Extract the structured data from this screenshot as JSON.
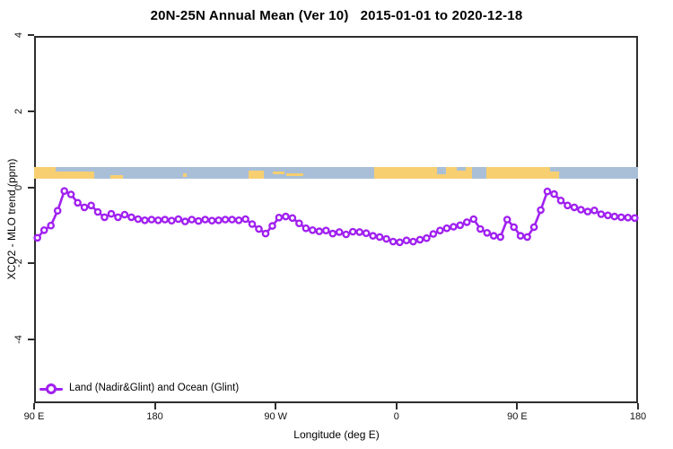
{
  "title": "20N-25N Annual Mean (Ver 10)   2015-01-01 to 2020-12-18",
  "axes": {
    "x": {
      "label": "Longitude (deg E)",
      "ticks": [
        "90 E",
        "180",
        "90 W",
        "0",
        "90 E",
        "180"
      ]
    },
    "y": {
      "label": "XCO2 - MLO trend (ppm)",
      "ticks": [
        "4",
        "2",
        "0",
        "-2",
        "-4"
      ]
    }
  },
  "legend": {
    "series_label": "Land (Nadir&Glint) and Ocean (Glint)"
  },
  "colors": {
    "series": "#A020F0",
    "marker_fill": "#ffffff",
    "land": "#F7CF71",
    "ocean": "#A9BFD8",
    "axis": "#2e2e2e"
  },
  "chart_data": {
    "type": "line",
    "title": "20N-25N Annual Mean (Ver 10)   2015-01-01 to 2020-12-18",
    "xlabel": "Longitude (deg E)",
    "ylabel": "XCO2 - MLO trend (ppm)",
    "xlim": [
      90,
      540
    ],
    "ylim": [
      -5.7,
      4.0
    ],
    "grid": false,
    "legend_position": "bottom-left",
    "x_tick_values": [
      90,
      180,
      270,
      360,
      450,
      540
    ],
    "x_tick_labels": [
      "90 E",
      "180",
      "90 W",
      "0",
      "90 E",
      "180"
    ],
    "y_tick_values": [
      4,
      2,
      0,
      -2,
      -4
    ],
    "series": [
      {
        "name": "Land (Nadir&Glint) and Ocean (Glint)",
        "color": "#A020F0",
        "marker": "open-circle",
        "x": [
          92.5,
          97.5,
          102.5,
          107.5,
          112.5,
          117.5,
          122.5,
          127.5,
          132.5,
          137.5,
          142.5,
          147.5,
          152.5,
          157.5,
          162.5,
          167.5,
          172.5,
          177.5,
          182.5,
          187.5,
          192.5,
          197.5,
          202.5,
          207.5,
          212.5,
          217.5,
          222.5,
          227.5,
          232.5,
          237.5,
          242.5,
          247.5,
          252.5,
          257.5,
          262.5,
          267.5,
          272.5,
          277.5,
          282.5,
          287.5,
          292.5,
          297.5,
          302.5,
          307.5,
          312.5,
          317.5,
          322.5,
          327.5,
          332.5,
          337.5,
          342.5,
          347.5,
          352.5,
          357.5,
          362.5,
          367.5,
          372.5,
          377.5,
          382.5,
          387.5,
          392.5,
          397.5,
          402.5,
          407.5,
          412.5,
          417.5,
          422.5,
          427.5,
          432.5,
          437.5,
          442.5,
          447.5,
          452.5,
          457.5,
          462.5,
          467.5,
          472.5,
          477.5,
          482.5,
          487.5,
          492.5,
          497.5,
          502.5,
          507.5,
          512.5,
          517.5,
          522.5,
          527.5,
          532.5,
          537.5
        ],
        "y": [
          -1.33,
          -1.13,
          -1.01,
          -0.62,
          -0.1,
          -0.19,
          -0.41,
          -0.53,
          -0.48,
          -0.65,
          -0.79,
          -0.7,
          -0.79,
          -0.72,
          -0.79,
          -0.84,
          -0.87,
          -0.85,
          -0.87,
          -0.85,
          -0.88,
          -0.84,
          -0.9,
          -0.85,
          -0.89,
          -0.85,
          -0.88,
          -0.87,
          -0.85,
          -0.85,
          -0.87,
          -0.84,
          -0.97,
          -1.1,
          -1.22,
          -1.02,
          -0.8,
          -0.77,
          -0.81,
          -0.95,
          -1.08,
          -1.13,
          -1.16,
          -1.14,
          -1.22,
          -1.18,
          -1.24,
          -1.17,
          -1.18,
          -1.21,
          -1.28,
          -1.31,
          -1.36,
          -1.43,
          -1.45,
          -1.4,
          -1.43,
          -1.38,
          -1.34,
          -1.23,
          -1.14,
          -1.08,
          -1.04,
          -1.0,
          -0.92,
          -0.84,
          -1.1,
          -1.2,
          -1.28,
          -1.31,
          -0.85,
          -1.05,
          -1.28,
          -1.31,
          -1.05,
          -0.6,
          -0.11,
          -0.18,
          -0.35,
          -0.48,
          -0.53,
          -0.59,
          -0.64,
          -0.61,
          -0.71,
          -0.74,
          -0.77,
          -0.79,
          -0.8,
          -0.81
        ]
      }
    ],
    "map_band": {
      "description": "20N-25N latitude land/ocean strip drawn near y=0.4",
      "band_value_range": [
        0.25,
        0.55
      ],
      "land_segments": [
        {
          "from": 90,
          "to": 106,
          "top": 0,
          "h": 1
        },
        {
          "from": 106,
          "to": 134.7,
          "top": 0.38,
          "h": 0.62
        },
        {
          "from": 146.7,
          "to": 156,
          "top": 0.72,
          "h": 0.28
        },
        {
          "from": 201.3,
          "to": 204,
          "top": 0.5,
          "h": 0.35
        },
        {
          "from": 250,
          "to": 261.3,
          "top": 0.3,
          "h": 0.7
        },
        {
          "from": 268,
          "to": 276.7,
          "top": 0.35,
          "h": 0.28
        },
        {
          "from": 278,
          "to": 290.7,
          "top": 0.5,
          "h": 0.28
        },
        {
          "from": 343.3,
          "to": 390,
          "top": 0,
          "h": 1
        },
        {
          "from": 390,
          "to": 396.7,
          "top": 0.62,
          "h": 0.38
        },
        {
          "from": 396.7,
          "to": 416,
          "top": 0,
          "h": 1
        },
        {
          "from": 426.7,
          "to": 474.7,
          "top": 0,
          "h": 1
        },
        {
          "from": 474.7,
          "to": 481.3,
          "top": 0.4,
          "h": 0.6
        }
      ],
      "ocean_patches": [
        {
          "from": 404.7,
          "to": 411.3,
          "top": 0,
          "h": 0.3
        }
      ]
    }
  }
}
